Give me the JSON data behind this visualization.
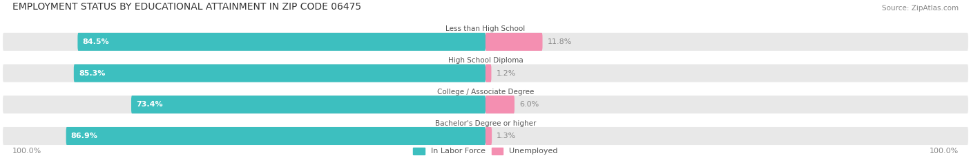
{
  "title": "EMPLOYMENT STATUS BY EDUCATIONAL ATTAINMENT IN ZIP CODE 06475",
  "source": "Source: ZipAtlas.com",
  "categories": [
    "Less than High School",
    "High School Diploma",
    "College / Associate Degree",
    "Bachelor's Degree or higher"
  ],
  "labor_force": [
    84.5,
    85.3,
    73.4,
    86.9
  ],
  "unemployed": [
    11.8,
    1.2,
    6.0,
    1.3
  ],
  "labor_force_color": "#3dbfbf",
  "unemployed_color": "#f48fb1",
  "bar_bg_color": "#e8e8e8",
  "bar_height": 0.55,
  "xlim": [
    -100,
    100
  ],
  "title_fontsize": 10,
  "label_fontsize": 8,
  "tick_fontsize": 8,
  "legend_labor": "In Labor Force",
  "legend_unemployed": "Unemployed",
  "left_label": "100.0%",
  "right_label": "100.0%"
}
